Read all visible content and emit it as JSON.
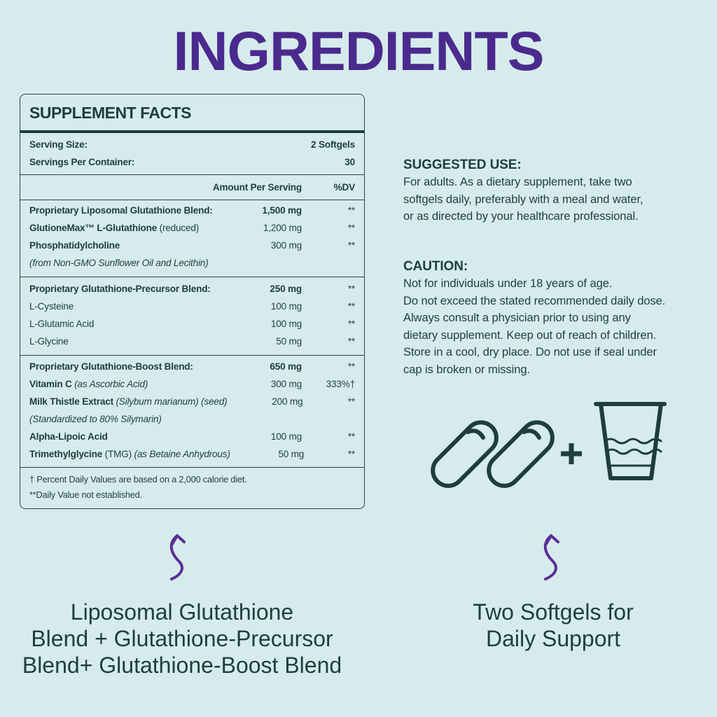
{
  "title": "INGREDIENTS",
  "facts": {
    "heading": "SUPPLEMENT FACTS",
    "serving_size": {
      "label": "Serving Size:",
      "value": "2 Softgels"
    },
    "servings_per_container": {
      "label": "Servings Per Container:",
      "value": 30
    },
    "columns": {
      "amount": "Amount Per Serving",
      "dv": "%DV"
    },
    "groups": [
      {
        "rows": [
          {
            "name": [
              {
                "text": "Proprietary Liposomal Glutathione Blend:",
                "style": "bold"
              }
            ],
            "amount": "1,500 mg",
            "amount_style": "bold",
            "dv": "**"
          },
          {
            "name": [
              {
                "text": "GlutioneMax™ L-Glutathione",
                "style": "bold"
              },
              {
                "text": "(reduced)",
                "style": "normal"
              }
            ],
            "amount": "1,200 mg",
            "dv": "**"
          },
          {
            "name": [
              {
                "text": "Phosphatidylcholine",
                "style": "bold"
              }
            ],
            "amount": "300 mg",
            "dv": "**"
          },
          {
            "name": [
              {
                "text": "(from Non-GMO Sunflower Oil and Lecithin)",
                "style": "italic"
              }
            ]
          }
        ]
      },
      {
        "rows": [
          {
            "name": [
              {
                "text": "Proprietary Glutathione-Precursor Blend:",
                "style": "bold"
              }
            ],
            "amount": "250 mg",
            "amount_style": "bold",
            "dv": "**"
          },
          {
            "name": [
              {
                "text": "L-Cysteine",
                "style": "normal"
              }
            ],
            "amount": "100 mg",
            "dv": "**"
          },
          {
            "name": [
              {
                "text": "L-Glutamic Acid",
                "style": "normal"
              }
            ],
            "amount": "100 mg",
            "dv": "**"
          },
          {
            "name": [
              {
                "text": "L-Glycine",
                "style": "normal"
              }
            ],
            "amount": "50 mg",
            "dv": "**"
          }
        ]
      },
      {
        "rows": [
          {
            "name": [
              {
                "text": "Proprietary Glutathione-Boost Blend:",
                "style": "bold"
              }
            ],
            "amount": "650 mg",
            "amount_style": "bold",
            "dv": "**"
          },
          {
            "name": [
              {
                "text": "Vitamin C",
                "style": "bold"
              },
              {
                "text": "(as Ascorbic Acid)",
                "style": "italic"
              }
            ],
            "amount": "300 mg",
            "dv": "333%†"
          },
          {
            "name": [
              {
                "text": "Milk Thistle Extract",
                "style": "bold"
              },
              {
                "text": "(Silybum marianum) (seed)",
                "style": "italic"
              }
            ],
            "amount": "200 mg",
            "dv": "**"
          },
          {
            "name": [
              {
                "text": "(Standardized to 80% Silymarin)",
                "style": "italic"
              }
            ]
          },
          {
            "name": [
              {
                "text": "Alpha-Lipoic Acid",
                "style": "bold"
              }
            ],
            "amount": "100 mg",
            "dv": "**"
          },
          {
            "name": [
              {
                "text": "Trimethylglycine",
                "style": "bold"
              },
              {
                "text": "(TMG)",
                "style": "normal"
              },
              {
                "text": "(as Betaine Anhydrous)",
                "style": "italic"
              }
            ],
            "amount": "50 mg",
            "dv": "**"
          }
        ]
      }
    ],
    "footnotes": [
      "† Percent Daily Values are based on a 2,000 calorie diet.",
      "**Daily Value not established."
    ]
  },
  "suggested_use": {
    "heading": "SUGGESTED USE:",
    "lines": [
      "For adults. As a dietary supplement, take two",
      "softgels daily, preferably with a meal and water,",
      "or as directed by your healthcare professional."
    ]
  },
  "caution": {
    "heading": "CAUTION:",
    "lines": [
      "Not for individuals under 18 years of age.",
      "Do not exceed the stated recommended daily dose.",
      "Always consult a physician prior to using any",
      "dietary supplement. Keep out of reach of children.",
      "Store in a cool, dry place. Do not use if seal under",
      "cap is broken or missing."
    ]
  },
  "captions": {
    "left": [
      "Liposomal Glutathione",
      "Blend + Glutathione-Precursor",
      "Blend+ Glutathione-Boost Blend"
    ],
    "right": [
      "Two Softgels for",
      "Daily Support"
    ]
  }
}
